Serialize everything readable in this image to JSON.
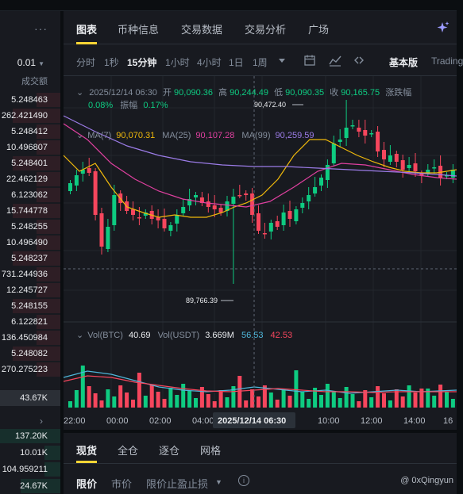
{
  "orderbook": {
    "precision": "0.01",
    "column_header": "成交额",
    "asks": [
      "5.248463",
      "262.421490",
      "5.248412",
      "10.496807",
      "5.248401",
      "22.462129",
      "6.123062",
      "15.744778",
      "5.248255",
      "10.496490",
      "5.248237",
      "731.244936",
      "12.245727",
      "5.248155",
      "6.122821",
      "136.450984",
      "5.248082",
      "270.275223"
    ],
    "current": "43.67K",
    "bids": [
      "137.20K",
      "10.01K",
      "104.959211",
      "24.67K"
    ]
  },
  "tabs": [
    "图表",
    "币种信息",
    "交易数据",
    "交易分析",
    "广场"
  ],
  "intervals": [
    "分时",
    "1秒",
    "15分钟",
    "1小时",
    "4小时",
    "1日",
    "1周"
  ],
  "view_modes": {
    "basic": "基本版",
    "tradingview": "Trading"
  },
  "ohlc": {
    "date": "2025/12/14 06:30",
    "open_label": "开",
    "open": "90,090.36",
    "high_label": "高",
    "high": "90,244.49",
    "low_label": "低",
    "low": "90,090.35",
    "close_label": "收",
    "close": "90,165.75",
    "change_label": "涨跌幅",
    "change": "0.08%",
    "amp_label": "振幅",
    "amp": "0.17%"
  },
  "ma": {
    "ma7_label": "MA(7)",
    "ma7": "90,070.31",
    "ma25_label": "MA(25)",
    "ma25": "90,107.28",
    "ma99_label": "MA(99)",
    "ma99": "90,259.59"
  },
  "annotations": {
    "high": "90,472.40",
    "low": "89,766.39"
  },
  "volume": {
    "btc_label": "Vol(BTC)",
    "btc": "40.69",
    "usdt_label": "Vol(USDT)",
    "usdt": "3.669M",
    "v1": "56.53",
    "v2": "42.53"
  },
  "time_axis": [
    "22:00",
    "00:00",
    "02:00",
    "04:00",
    "10:00",
    "12:00",
    "14:00",
    "16"
  ],
  "crosshair_time": "2025/12/14 06:30",
  "bottom_tabs": [
    "现货",
    "全仓",
    "逐仓",
    "网格"
  ],
  "order_types": [
    "限价",
    "市价",
    "限价止盈止损"
  ],
  "watermark": "@ 0xQingyun",
  "colors": {
    "up": "#0ecb81",
    "down": "#f6465d",
    "ma7": "#f0b90b",
    "ma25": "#e040a0",
    "ma99": "#9c7ce8",
    "accent": "#fcd535"
  }
}
